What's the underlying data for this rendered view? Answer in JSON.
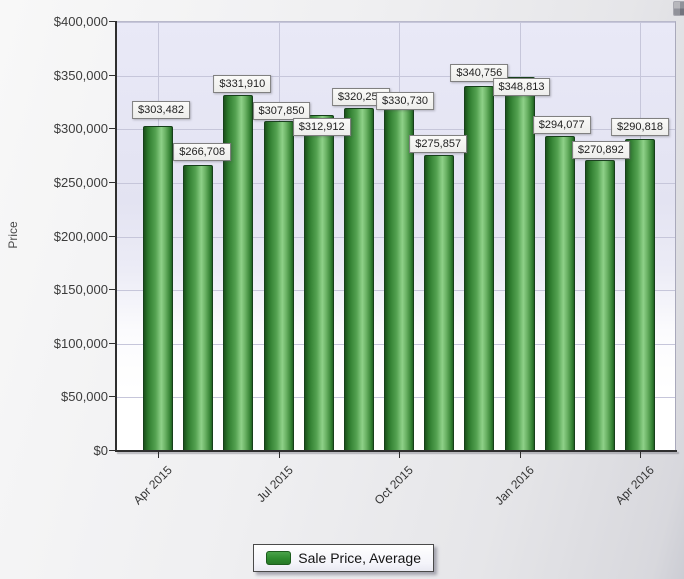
{
  "chart_data": {
    "type": "bar",
    "title": "",
    "ylabel": "Price",
    "xlabel": "",
    "ylim": [
      0,
      400000
    ],
    "y_tick_values": [
      0,
      50000,
      100000,
      150000,
      200000,
      250000,
      300000,
      350000,
      400000
    ],
    "y_tick_labels": [
      "$0",
      "$50,000",
      "$100,000",
      "$150,000",
      "$200,000",
      "$250,000",
      "$300,000",
      "$350,000",
      "$400,000"
    ],
    "x_tick_labels": [
      "Apr 2015",
      "Jul 2015",
      "Oct 2015",
      "Jan 2016",
      "Apr 2016"
    ],
    "x_tick_month_index": [
      0,
      3,
      6,
      9,
      12
    ],
    "months_shown": 13,
    "grid": true,
    "legend_position": "bottom",
    "series": [
      {
        "name": "Sale Price, Average",
        "color": "#2e8b2e",
        "values": [
          303482,
          266708,
          331910,
          307850,
          312912,
          320259,
          330730,
          275857,
          340756,
          348813,
          294077,
          270892,
          290818
        ],
        "value_labels": [
          "$303,482",
          "$266,708",
          "$331,910",
          "$307,850",
          "$312,912",
          "$320,259",
          "$330,730",
          "$275,857",
          "$340,756",
          "$348,813",
          "$294,077",
          "$270,892",
          "$290,818"
        ]
      }
    ]
  },
  "colors": {
    "bar_main": "#2e8b2e",
    "bar_highlight": "#8fd189",
    "bar_border": "#16401a",
    "gridline": "#c6c6da",
    "plot_background_top": "#e8e8f6",
    "plot_background_bottom": "#ffffff",
    "axis": "#2f2f2f",
    "value_label_background": "#f2f2f0",
    "value_label_border": "#808080"
  },
  "icons": {
    "corner_icon": "chart-grid-icon"
  }
}
